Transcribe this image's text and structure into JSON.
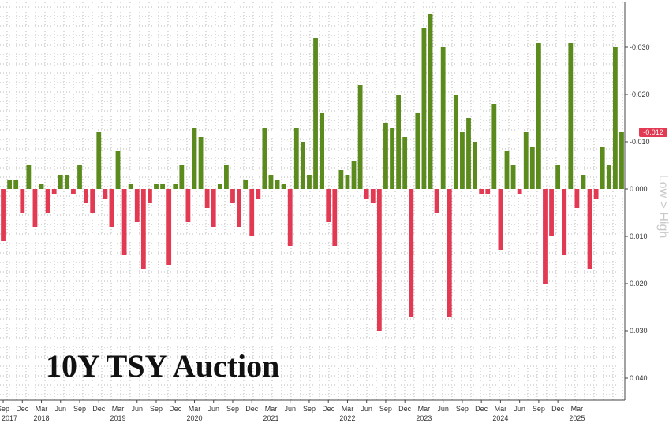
{
  "chart_data": {
    "type": "bar",
    "title": "10Y TSY Auction",
    "side_label": "Low > High",
    "last_value_label": "-0.012",
    "colors": {
      "positive": "#5b8a1d",
      "negative": "#e23a52",
      "last_badge": "#e23a52",
      "grid": "#b8b8b8"
    },
    "ylim": [
      -0.04,
      0.04
    ],
    "y_axis_inverted": true,
    "y_ticks": [
      {
        "value": -0.03,
        "label": "-0.030"
      },
      {
        "value": -0.02,
        "label": "-0.020"
      },
      {
        "value": -0.01,
        "label": "-0.010"
      },
      {
        "value": 0.0,
        "label": "0.000"
      },
      {
        "value": 0.01,
        "label": "0.010"
      },
      {
        "value": 0.02,
        "label": "0.020"
      },
      {
        "value": 0.03,
        "label": "0.030"
      },
      {
        "value": 0.04,
        "label": "0.040"
      }
    ],
    "start_month": "2017-09",
    "end_month": "2025-05",
    "x_ticks": [
      "Sep",
      "Dec",
      "Mar",
      "Jun",
      "Sep",
      "Dec",
      "Mar",
      "Jun",
      "Sep",
      "Dec",
      "Mar",
      "Jun",
      "Sep",
      "Dec",
      "Mar",
      "Jun",
      "Sep",
      "Dec",
      "Mar",
      "Jun",
      "Sep",
      "Dec",
      "Mar",
      "Jun",
      "Sep",
      "Dec",
      "Mar",
      "Jun",
      "Sep",
      "Dec",
      "Mar"
    ],
    "years": [
      "2017",
      "2018",
      "2019",
      "2020",
      "2021",
      "2022",
      "2023",
      "2024",
      "2025"
    ],
    "values": [
      0.011,
      -0.002,
      -0.002,
      0.005,
      -0.005,
      0.008,
      -0.001,
      0.005,
      0.001,
      -0.003,
      -0.003,
      0.001,
      -0.005,
      0.003,
      0.005,
      -0.012,
      0.002,
      0.008,
      -0.008,
      0.014,
      -0.001,
      0.007,
      0.017,
      0.003,
      -0.001,
      -0.001,
      0.016,
      -0.001,
      -0.005,
      0.007,
      -0.013,
      -0.011,
      0.004,
      0.008,
      -0.001,
      -0.005,
      0.003,
      0.008,
      -0.002,
      0.01,
      0.002,
      -0.013,
      -0.003,
      -0.002,
      -0.001,
      0.012,
      -0.013,
      -0.01,
      -0.003,
      -0.032,
      -0.016,
      0.007,
      0.012,
      -0.004,
      -0.003,
      -0.006,
      -0.022,
      0.002,
      0.003,
      0.03,
      -0.014,
      -0.013,
      -0.02,
      -0.011,
      0.027,
      -0.016,
      -0.034,
      -0.037,
      0.005,
      -0.03,
      0.027,
      -0.02,
      -0.012,
      -0.015,
      -0.01,
      0.001,
      0.001,
      -0.018,
      0.013,
      -0.008,
      -0.005,
      0.001,
      -0.012,
      -0.009,
      -0.031,
      0.02,
      0.01,
      -0.005,
      0.014,
      -0.031,
      0.004,
      -0.003,
      0.017,
      0.002,
      -0.009,
      -0.005,
      -0.03,
      -0.012
    ]
  }
}
